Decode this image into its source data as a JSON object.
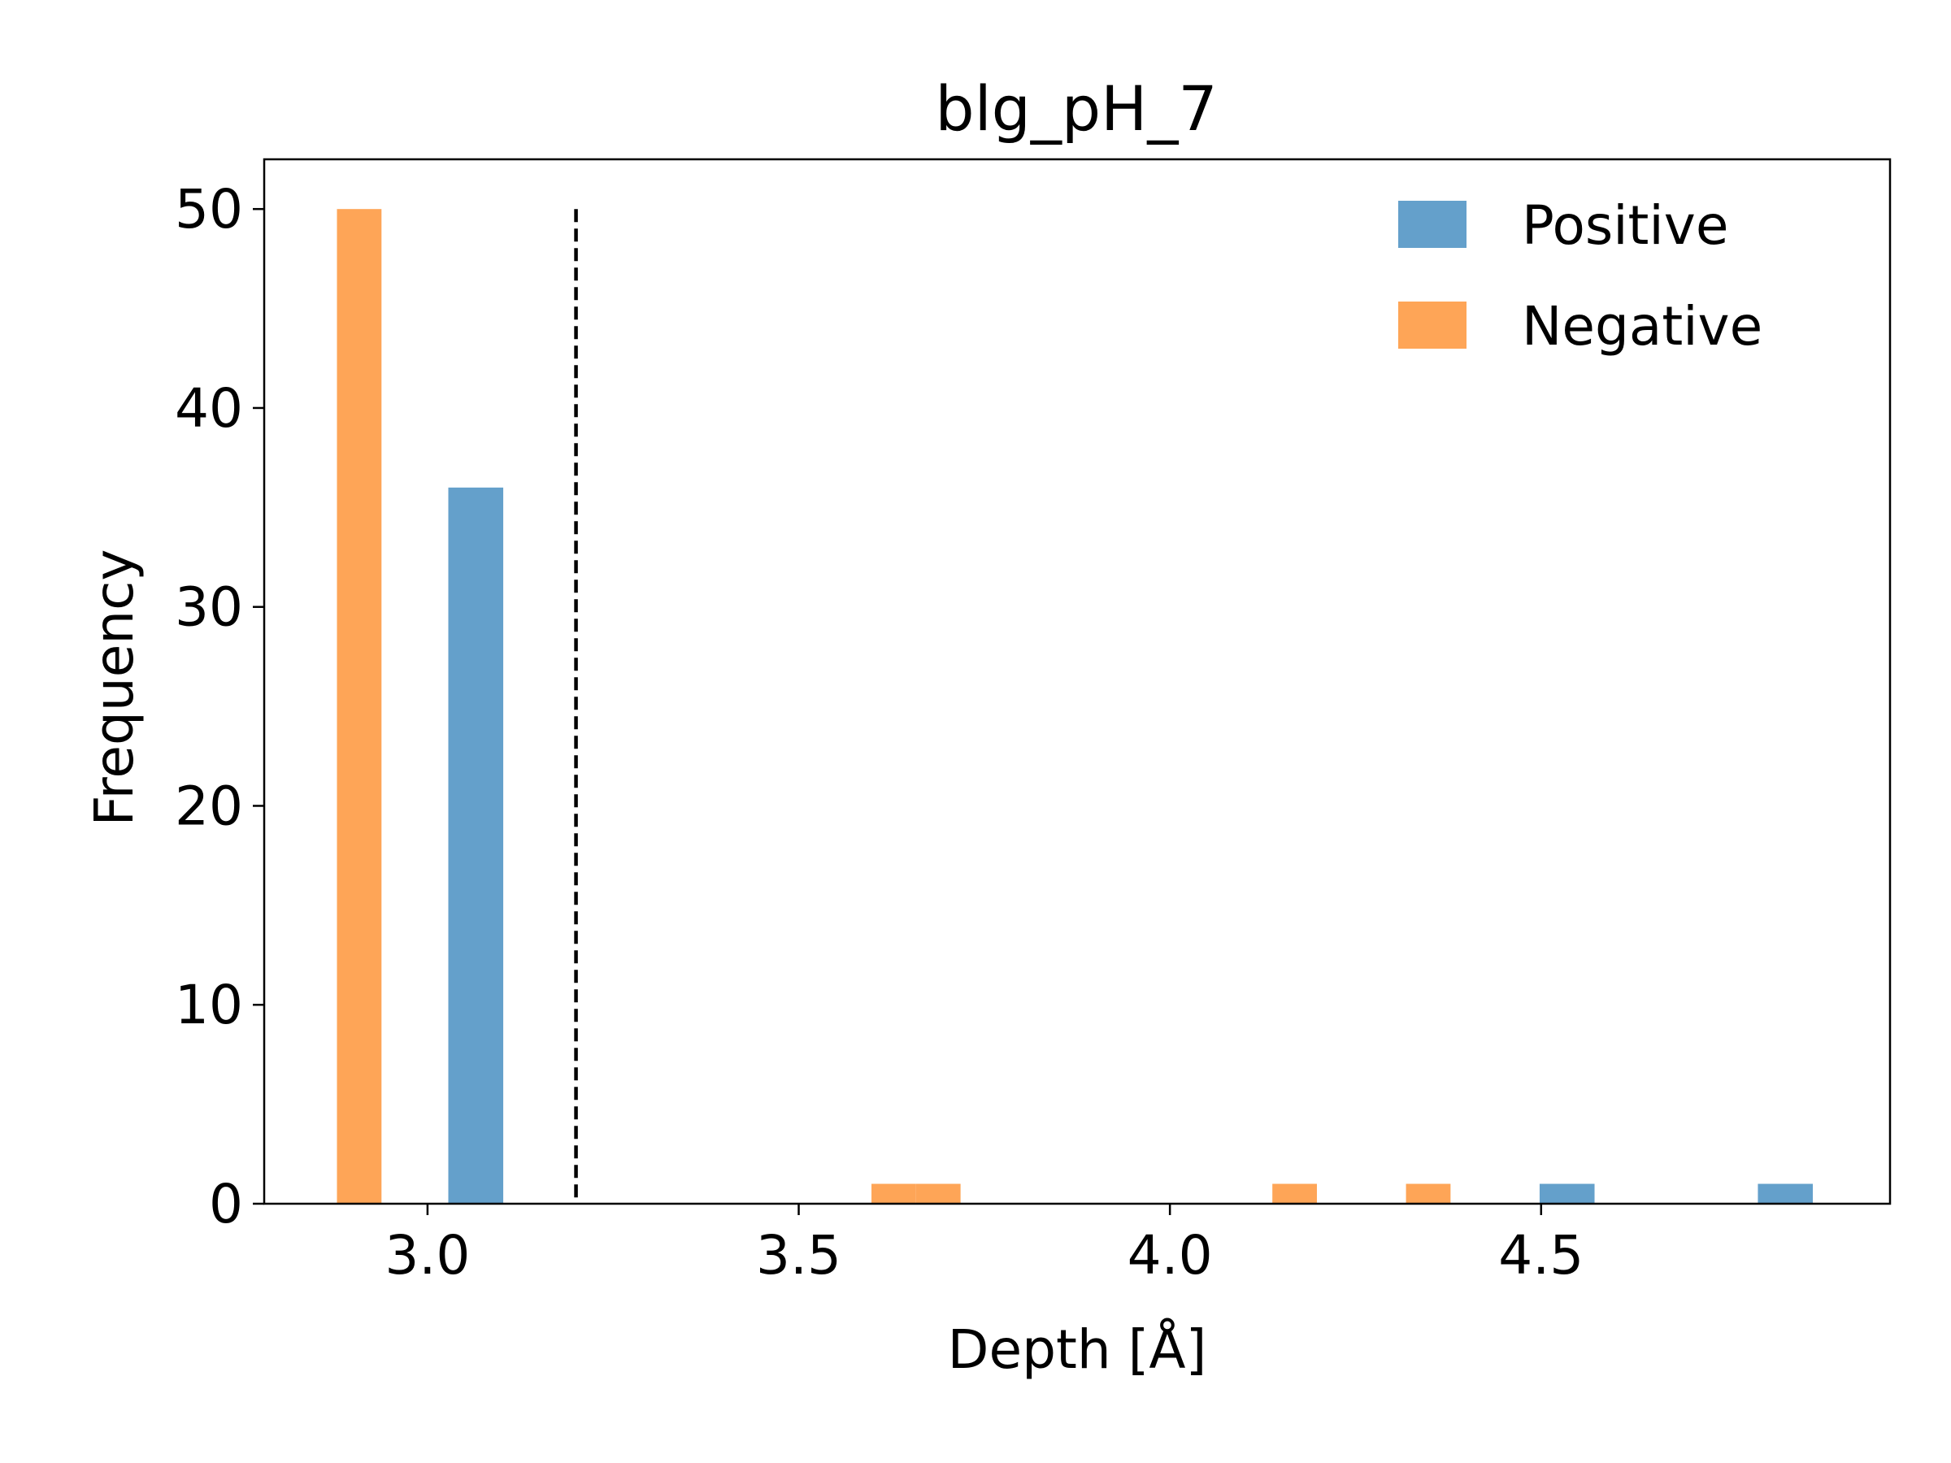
{
  "chart_data": {
    "type": "bar",
    "title": "blg_pH_7",
    "xlabel": "Depth [Å]",
    "ylabel": "Frequency",
    "xlim": [
      2.78,
      4.97
    ],
    "ylim": [
      0,
      52.5
    ],
    "xticks": [
      {
        "value": 3.0,
        "label": "3.0"
      },
      {
        "value": 3.5,
        "label": "3.5"
      },
      {
        "value": 4.0,
        "label": "4.0"
      },
      {
        "value": 4.5,
        "label": "4.5"
      }
    ],
    "yticks": [
      {
        "value": 0,
        "label": "0"
      },
      {
        "value": 10,
        "label": "10"
      },
      {
        "value": 20,
        "label": "20"
      },
      {
        "value": 30,
        "label": "30"
      },
      {
        "value": 40,
        "label": "40"
      },
      {
        "value": 50,
        "label": "50"
      }
    ],
    "grid": false,
    "legend_position": "top-right",
    "series": [
      {
        "name": "Positive",
        "color": "#64a0cb",
        "bins": [
          {
            "x0": 3.028,
            "x1": 3.102,
            "count": 36
          },
          {
            "x0": 4.498,
            "x1": 4.572,
            "count": 1
          },
          {
            "x0": 4.792,
            "x1": 4.866,
            "count": 1
          }
        ]
      },
      {
        "name": "Negative",
        "color": "#fea557",
        "bins": [
          {
            "x0": 2.878,
            "x1": 2.938,
            "count": 50
          },
          {
            "x0": 3.598,
            "x1": 3.658,
            "count": 1
          },
          {
            "x0": 3.658,
            "x1": 3.718,
            "count": 1
          },
          {
            "x0": 4.138,
            "x1": 4.198,
            "count": 1
          },
          {
            "x0": 4.318,
            "x1": 4.378,
            "count": 1
          }
        ]
      }
    ],
    "threshold_line": {
      "x": 3.2,
      "ymax": 50,
      "style": "dashed",
      "color": "#000000"
    }
  }
}
